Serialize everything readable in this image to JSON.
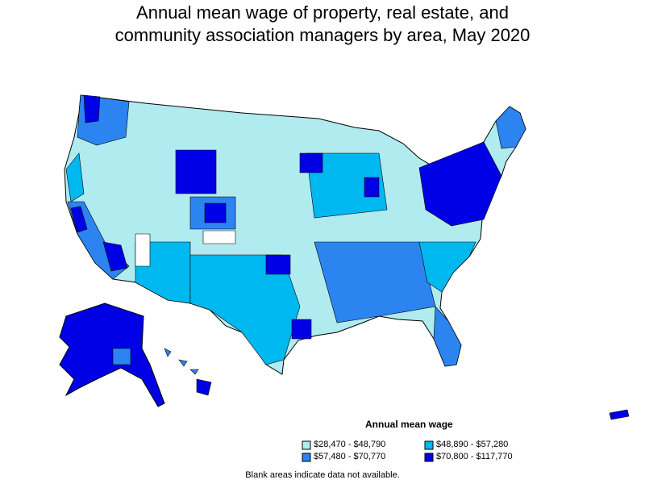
{
  "title_line1": "Annual mean wage of property, real estate, and",
  "title_line2": "community association managers by area, May 2020",
  "legend": {
    "title": "Annual mean wage",
    "items": [
      {
        "label": "$28,470 - $48,790",
        "color": "#b0ebf0"
      },
      {
        "label": "$48,890 - $57,280",
        "color": "#00b8f0"
      },
      {
        "label": "$57,480 - $70,770",
        "color": "#2c84f0"
      },
      {
        "label": "$70,800 - $117,770",
        "color": "#0000e6"
      }
    ]
  },
  "note": "Blank areas indicate data not available.",
  "colors": {
    "outline": "#000000",
    "blank": "#ffffff"
  }
}
